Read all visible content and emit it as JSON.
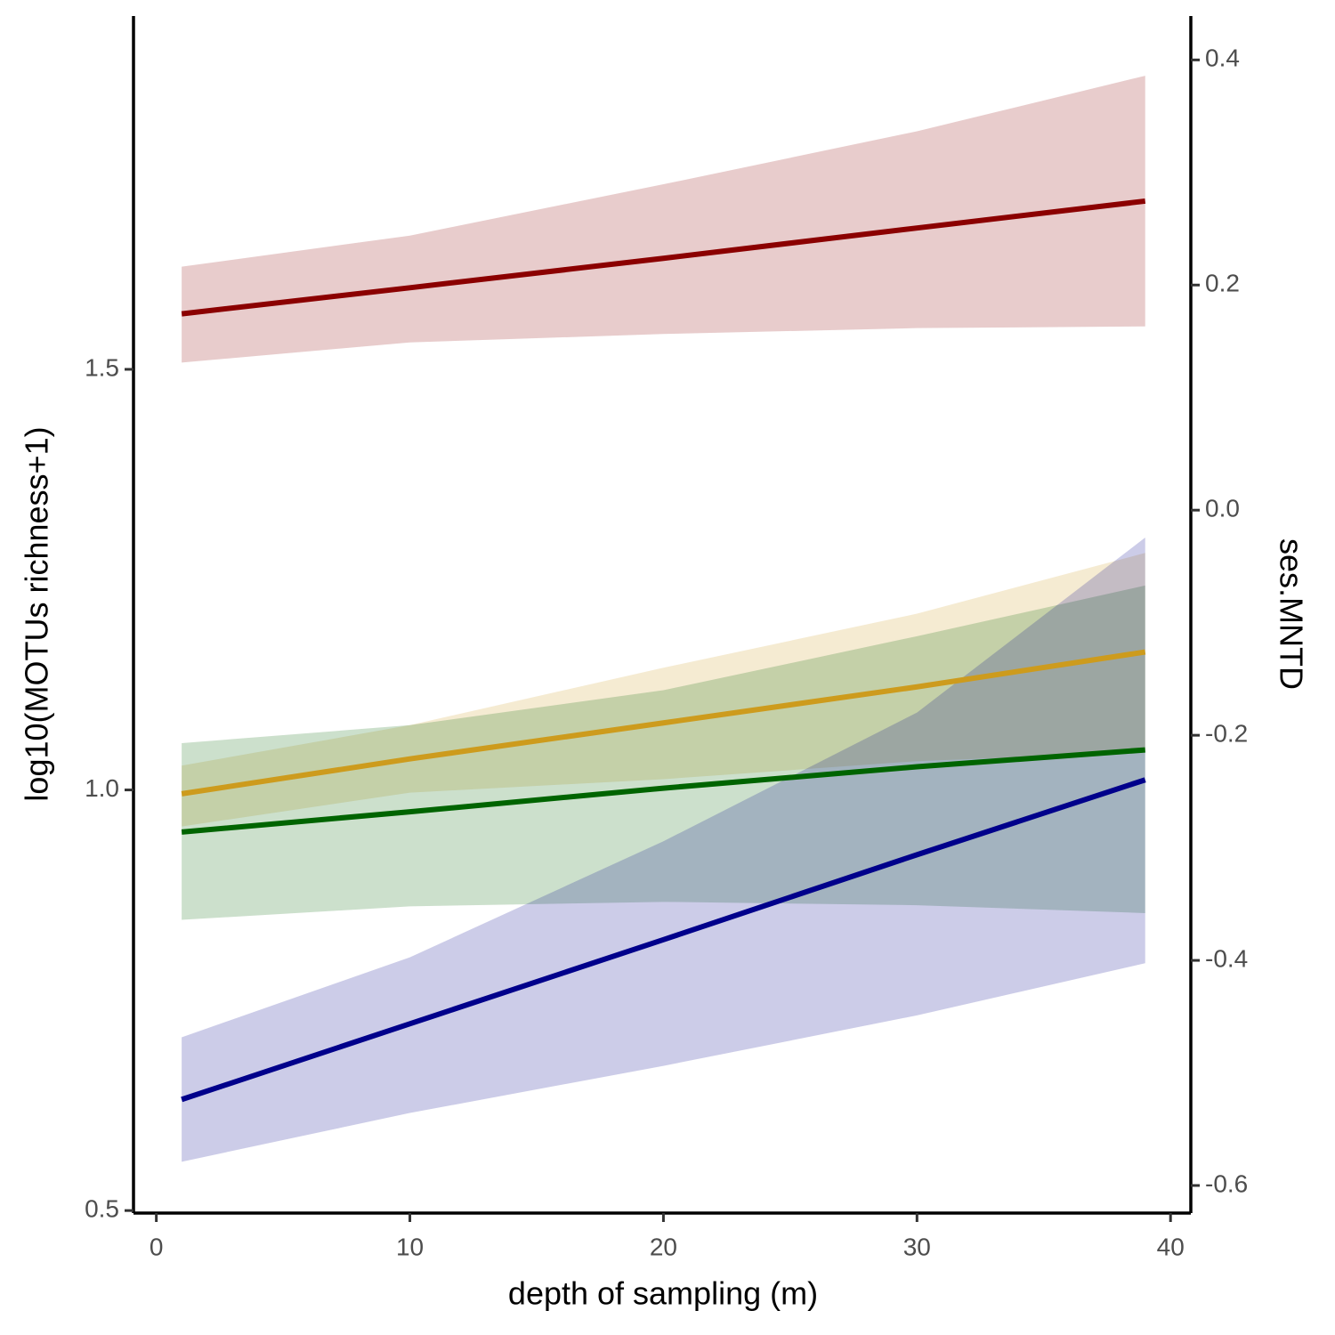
{
  "chart_data": {
    "type": "ribbon-line",
    "x_label": "depth of sampling (m)",
    "y_label": "log10(MOTUs richness+1)",
    "y2_label": "ses.MNTD",
    "x": [
      1,
      10,
      20,
      30,
      39
    ],
    "xlim": [
      -0.9,
      40.8
    ],
    "xticks": [
      0,
      10,
      20,
      30,
      40
    ],
    "ylim": [
      0.497,
      1.92
    ],
    "yticks": [
      0.5,
      {
        "value": 1,
        "label": "1.0"
      },
      1.5
    ],
    "y2lim": [
      -0.6245,
      0.439
    ],
    "y2ticks": [
      -0.6,
      -0.4,
      -0.2,
      {
        "value": 0,
        "label": "0.0"
      },
      0.2,
      0.4
    ],
    "series": [
      {
        "color": "#8B0000",
        "axis": "y",
        "values": [
          1.566,
          1.597,
          1.632,
          1.668,
          1.7
        ],
        "upper": [
          1.622,
          1.659,
          1.72,
          1.783,
          1.849
        ],
        "lower": [
          1.508,
          1.532,
          1.542,
          1.549,
          1.551
        ]
      },
      {
        "color": "#CD9B1D",
        "axis": "y2",
        "values": [
          -0.252,
          -0.221,
          -0.189,
          -0.157,
          -0.126
        ],
        "upper": [
          -0.227,
          -0.191,
          -0.14,
          -0.092,
          -0.038
        ],
        "lower": [
          -0.281,
          -0.251,
          -0.239,
          -0.223,
          -0.215
        ]
      },
      {
        "color": "#006400",
        "axis": "y2",
        "values": [
          -0.286,
          -0.268,
          -0.247,
          -0.228,
          -0.213
        ],
        "upper": [
          -0.207,
          -0.191,
          -0.16,
          -0.112,
          -0.067
        ],
        "lower": [
          -0.364,
          -0.352,
          -0.348,
          -0.351,
          -0.358
        ]
      },
      {
        "color": "#00008B",
        "axis": "y",
        "values": [
          0.632,
          0.722,
          0.822,
          0.923,
          1.012
        ],
        "upper": [
          0.706,
          0.801,
          0.939,
          1.092,
          1.3
        ],
        "lower": [
          0.558,
          0.616,
          0.672,
          0.732,
          0.794
        ]
      }
    ]
  }
}
